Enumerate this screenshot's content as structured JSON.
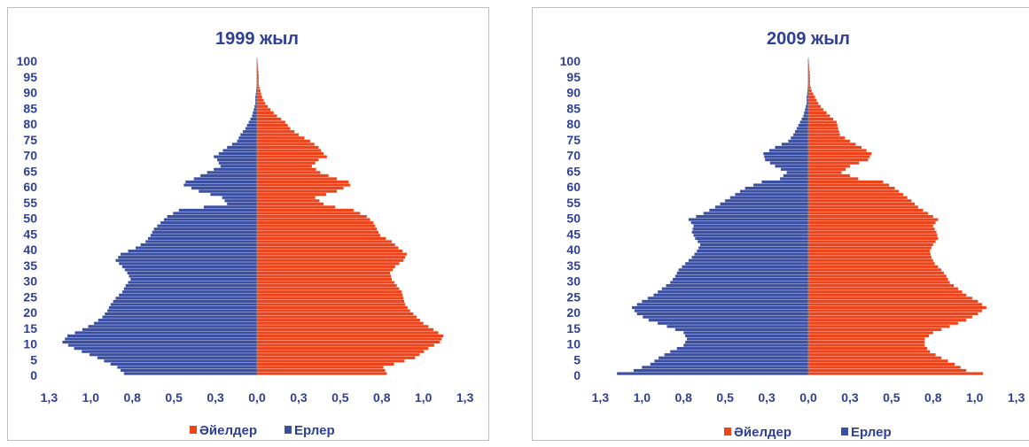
{
  "chart_data": [
    {
      "type": "bar",
      "orientation": "horizontal-pyramid",
      "title": "1999 жыл",
      "y_ticks": [
        "0",
        "5",
        "10",
        "15",
        "20",
        "25",
        "30",
        "35",
        "40",
        "45",
        "50",
        "55",
        "60",
        "65",
        "70",
        "75",
        "80",
        "85",
        "90",
        "95",
        "100"
      ],
      "x_tick_labels": [
        "1,3",
        "1,0",
        "0,8",
        "0,5",
        "0,3",
        "0,0",
        "0,3",
        "0,5",
        "0,8",
        "1,0",
        "1,3"
      ],
      "xlim": [
        -1.3,
        1.3
      ],
      "ylim": [
        0,
        100
      ],
      "legend": [
        {
          "name": "Әйелдер",
          "color": "#f0431a"
        },
        {
          "name": "Ерлер",
          "color": "#3b4fa3"
        }
      ],
      "legend_position": "bottom",
      "series": [
        {
          "name": "Әйелдер",
          "side": "right",
          "color": "#f0431a",
          "x_anchor": [
            0,
            2,
            5,
            8,
            10,
            12,
            14,
            16,
            18,
            20,
            22,
            24,
            26,
            28,
            30,
            32,
            34,
            36,
            38,
            40,
            42,
            44,
            46,
            48,
            50,
            52,
            53,
            54,
            56,
            58,
            60,
            61,
            62,
            64,
            66,
            68,
            69,
            70,
            72,
            74,
            76,
            78,
            80,
            82,
            84,
            86,
            88,
            90,
            92,
            95,
            98,
            100
          ],
          "values": [
            0.78,
            0.76,
            0.95,
            1.03,
            1.1,
            1.12,
            1.06,
            1.0,
            0.96,
            0.92,
            0.89,
            0.88,
            0.87,
            0.84,
            0.81,
            0.8,
            0.83,
            0.88,
            0.9,
            0.85,
            0.81,
            0.74,
            0.72,
            0.7,
            0.66,
            0.58,
            0.47,
            0.4,
            0.35,
            0.48,
            0.56,
            0.55,
            0.48,
            0.38,
            0.33,
            0.37,
            0.42,
            0.4,
            0.37,
            0.32,
            0.25,
            0.2,
            0.17,
            0.12,
            0.08,
            0.05,
            0.03,
            0.02,
            0.01,
            0.01,
            0.005,
            0.002
          ]
        },
        {
          "name": "Ерлер",
          "side": "left",
          "color": "#3b4fa3",
          "x_anchor": [
            0,
            2,
            5,
            8,
            10,
            12,
            14,
            16,
            18,
            20,
            22,
            24,
            26,
            28,
            30,
            32,
            34,
            36,
            38,
            40,
            42,
            44,
            46,
            48,
            50,
            52,
            53,
            54,
            56,
            58,
            60,
            61,
            62,
            64,
            66,
            68,
            69,
            70,
            72,
            74,
            76,
            78,
            80,
            82,
            84,
            86,
            88,
            90,
            92,
            95,
            98,
            100
          ],
          "values": [
            0.8,
            0.84,
            0.96,
            1.1,
            1.17,
            1.14,
            1.05,
            0.98,
            0.93,
            0.9,
            0.88,
            0.85,
            0.81,
            0.79,
            0.76,
            0.78,
            0.81,
            0.85,
            0.82,
            0.73,
            0.67,
            0.64,
            0.62,
            0.58,
            0.54,
            0.47,
            0.32,
            0.18,
            0.21,
            0.35,
            0.44,
            0.43,
            0.38,
            0.3,
            0.22,
            0.24,
            0.26,
            0.23,
            0.18,
            0.12,
            0.1,
            0.07,
            0.05,
            0.03,
            0.02,
            0.01,
            0.01,
            0.005,
            0.003,
            0.002,
            0.001,
            0.0
          ]
        }
      ]
    },
    {
      "type": "bar",
      "orientation": "horizontal-pyramid",
      "title": "2009 жыл",
      "y_ticks": [
        "0",
        "5",
        "10",
        "15",
        "20",
        "25",
        "30",
        "35",
        "40",
        "45",
        "50",
        "55",
        "60",
        "65",
        "70",
        "75",
        "80",
        "85",
        "90",
        "95",
        "100"
      ],
      "x_tick_labels": [
        "1,3",
        "1,0",
        "0,8",
        "0,5",
        "0,3",
        "0,0",
        "0,3",
        "0,5",
        "0,8",
        "1,0",
        "1,3"
      ],
      "xlim": [
        -1.3,
        1.3
      ],
      "ylim": [
        0,
        100
      ],
      "legend": [
        {
          "name": "Әйелдер",
          "color": "#f0431a"
        },
        {
          "name": "Ерлер",
          "color": "#3b4fa3"
        }
      ],
      "legend_position": "bottom",
      "series": [
        {
          "name": "Әйелдер",
          "side": "right",
          "color": "#f0431a",
          "x_anchor": [
            0,
            1,
            3,
            5,
            7,
            9,
            11,
            13,
            15,
            17,
            19,
            21,
            23,
            25,
            27,
            29,
            31,
            33,
            35,
            37,
            39,
            41,
            43,
            45,
            47,
            49,
            51,
            53,
            55,
            57,
            59,
            61,
            62,
            64,
            66,
            68,
            70,
            72,
            74,
            76,
            78,
            80,
            82,
            84,
            86,
            88,
            90,
            92,
            95,
            98,
            100
          ],
          "values": [
            1.05,
            0.95,
            0.88,
            0.8,
            0.73,
            0.7,
            0.7,
            0.75,
            0.85,
            0.95,
            1.02,
            1.07,
            1.02,
            0.95,
            0.9,
            0.85,
            0.83,
            0.8,
            0.76,
            0.74,
            0.73,
            0.75,
            0.78,
            0.77,
            0.75,
            0.78,
            0.72,
            0.66,
            0.62,
            0.57,
            0.52,
            0.45,
            0.3,
            0.2,
            0.25,
            0.36,
            0.38,
            0.32,
            0.25,
            0.19,
            0.18,
            0.17,
            0.13,
            0.09,
            0.06,
            0.04,
            0.02,
            0.01,
            0.01,
            0.005,
            0.002
          ]
        },
        {
          "name": "Ерлер",
          "side": "left",
          "color": "#3b4fa3",
          "x_anchor": [
            0,
            1,
            3,
            5,
            7,
            9,
            11,
            13,
            15,
            17,
            19,
            21,
            23,
            25,
            27,
            29,
            31,
            33,
            35,
            37,
            39,
            41,
            43,
            45,
            47,
            49,
            51,
            53,
            55,
            57,
            59,
            61,
            62,
            64,
            66,
            68,
            70,
            72,
            74,
            76,
            78,
            80,
            82,
            84,
            86,
            88,
            90,
            92,
            95,
            98,
            100
          ],
          "values": [
            1.15,
            1.05,
            0.95,
            0.9,
            0.83,
            0.75,
            0.73,
            0.75,
            0.85,
            0.96,
            1.03,
            1.06,
            1.0,
            0.93,
            0.88,
            0.83,
            0.8,
            0.78,
            0.74,
            0.7,
            0.67,
            0.65,
            0.68,
            0.7,
            0.69,
            0.72,
            0.63,
            0.56,
            0.5,
            0.44,
            0.38,
            0.28,
            0.17,
            0.13,
            0.2,
            0.26,
            0.27,
            0.2,
            0.12,
            0.09,
            0.07,
            0.05,
            0.03,
            0.02,
            0.01,
            0.01,
            0.005,
            0.003,
            0.002,
            0.001,
            0.0
          ]
        }
      ]
    }
  ]
}
